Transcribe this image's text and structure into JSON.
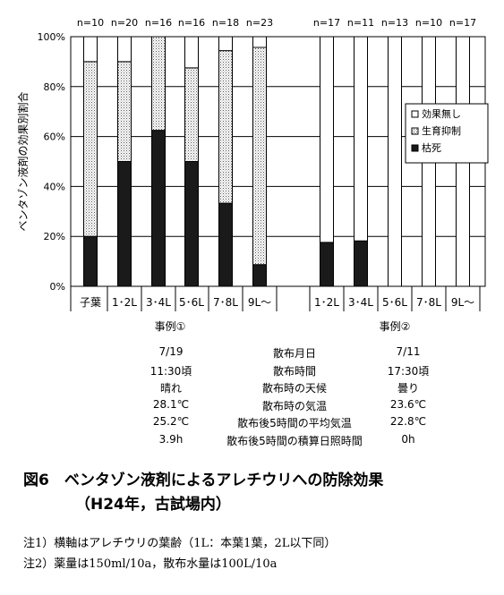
{
  "chart_data": {
    "type": "bar",
    "stacked": true,
    "ylabel": "ベンタゾン液剤の効果別割合",
    "ylim": [
      0,
      100
    ],
    "yticks": [
      "0%",
      "20%",
      "40%",
      "60%",
      "80%",
      "100%"
    ],
    "grid": true,
    "legend_position": "right",
    "categories": [
      "子葉",
      "1･2L",
      "3･4L",
      "5･6L",
      "7･8L",
      "9L～",
      "1･2L",
      "3･4L",
      "5･6L",
      "7･8L",
      "9L～"
    ],
    "n_labels": [
      "n=10",
      "n=20",
      "n=16",
      "n=16",
      "n=18",
      "n=23",
      "n=17",
      "n=11",
      "n=13",
      "n=10",
      "n=17"
    ],
    "groups": [
      {
        "label": "事例①",
        "categories": 6
      },
      {
        "label": "事例②",
        "categories": 5
      }
    ],
    "series": [
      {
        "name": "枯死",
        "color": "#1a1a1a",
        "values": [
          20,
          50,
          62.5,
          50,
          33.3,
          8.7,
          17.6,
          18.2,
          0,
          0,
          0
        ]
      },
      {
        "name": "生育抑制",
        "color": "#cccccc",
        "values": [
          70,
          40,
          37.5,
          37.5,
          61.1,
          87,
          0,
          0,
          0,
          0,
          0
        ]
      },
      {
        "name": "効果無し",
        "color": "#ffffff",
        "values": [
          10,
          10,
          0,
          12.5,
          5.6,
          4.3,
          82.4,
          81.8,
          100,
          100,
          100
        ]
      }
    ],
    "legend": [
      "効果無し",
      "生育抑制",
      "枯死"
    ]
  },
  "conditions": [
    {
      "case1": "7/19",
      "item": "散布月日",
      "case2": "7/11"
    },
    {
      "case1": "11:30頃",
      "item": "散布時間",
      "case2": "17:30頃"
    },
    {
      "case1": "晴れ",
      "item": "散布時の天候",
      "case2": "曇り"
    },
    {
      "case1": "28.1℃",
      "item": "散布時の気温",
      "case2": "23.6℃"
    },
    {
      "case1": "25.2℃",
      "item": "散布後5時間の平均気温",
      "case2": "22.8℃"
    },
    {
      "case1": "3.9h",
      "item": "散布後5時間の積算日照時間",
      "case2": "0h"
    }
  ],
  "figure": {
    "title": "図6　ベンタゾン液剤によるアレチウリへの防除効果",
    "subtitle": "（H24年，古試場内）"
  },
  "notes": [
    "注1）横軸はアレチウリの葉齢（1L：本葉1葉，2L以下同）",
    "注2）薬量は150ml/10a，散布水量は100L/10a"
  ]
}
